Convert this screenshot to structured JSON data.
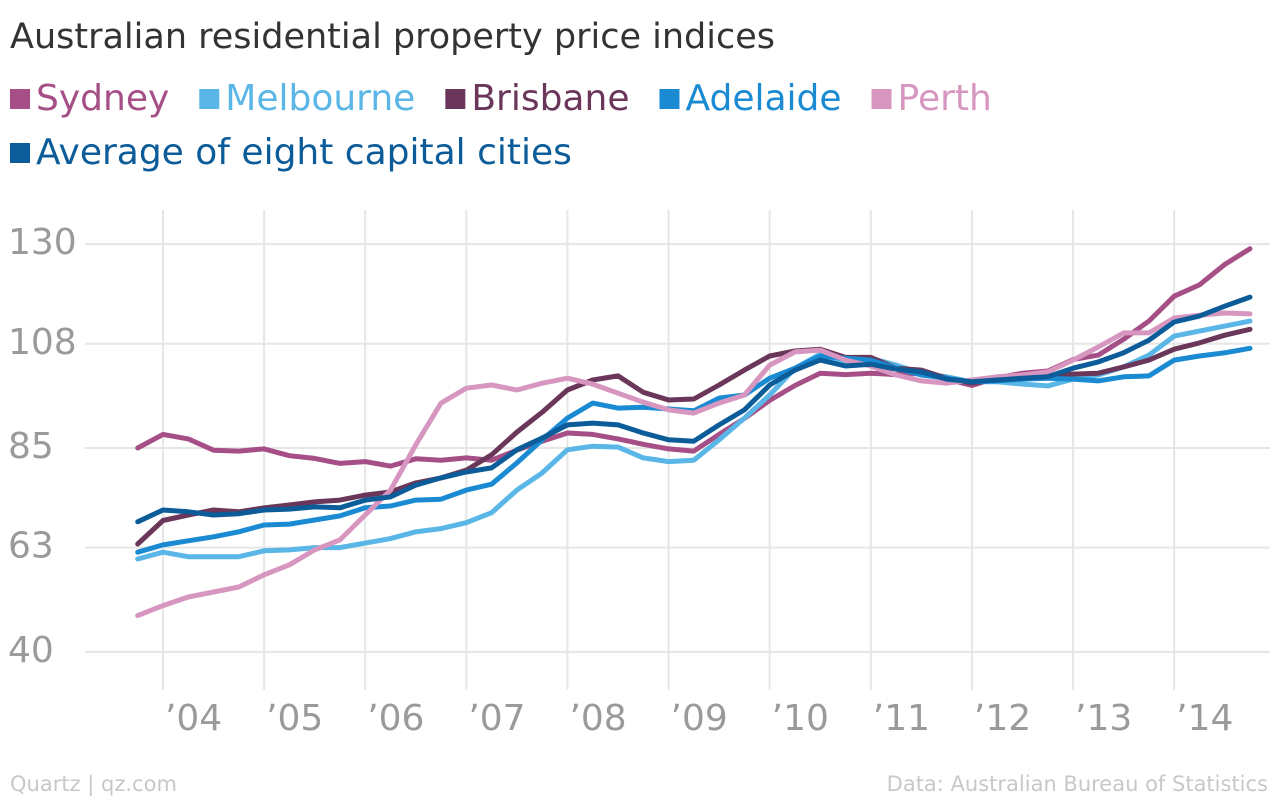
{
  "chart_data": {
    "type": "line",
    "title": "Australian residential property price indices",
    "source_left": "Quartz | qz.com",
    "source_right": "Data: Australian Bureau of Statistics",
    "x": [
      2003.75,
      2004,
      2004.25,
      2004.5,
      2004.75,
      2005,
      2005.25,
      2005.5,
      2005.75,
      2006,
      2006.25,
      2006.5,
      2006.75,
      2007,
      2007.25,
      2007.5,
      2007.75,
      2008,
      2008.25,
      2008.5,
      2008.75,
      2009,
      2009.25,
      2009.5,
      2009.75,
      2010,
      2010.25,
      2010.5,
      2010.75,
      2011,
      2011.25,
      2011.5,
      2011.75,
      2012,
      2012.25,
      2012.5,
      2012.75,
      2013,
      2013.25,
      2013.5,
      2013.75,
      2014,
      2014.25,
      2014.5,
      2014.75
    ],
    "xlim": [
      2003.5,
      2014.75
    ],
    "xticks": [
      {
        "value": 2004,
        "label": "’04"
      },
      {
        "value": 2005,
        "label": "’05"
      },
      {
        "value": 2006,
        "label": "’06"
      },
      {
        "value": 2007,
        "label": "’07"
      },
      {
        "value": 2008,
        "label": "’08"
      },
      {
        "value": 2009,
        "label": "’09"
      },
      {
        "value": 2010,
        "label": "’10"
      },
      {
        "value": 2011,
        "label": "’11"
      },
      {
        "value": 2012,
        "label": "’12"
      },
      {
        "value": 2013,
        "label": "’13"
      },
      {
        "value": 2014,
        "label": "’14"
      }
    ],
    "ylim": [
      34,
      134
    ],
    "yticks": [
      40,
      63,
      85,
      108,
      130
    ],
    "grid": true,
    "series": [
      {
        "name": "Sydney",
        "color": "#a54f86",
        "values": [
          85,
          88,
          87,
          84.5,
          84.3,
          84.8,
          83.3,
          82.7,
          81.6,
          82,
          81,
          82.6,
          82.3,
          82.8,
          82.3,
          84.5,
          86.5,
          88.3,
          88,
          87,
          85.8,
          84.8,
          84.3,
          88,
          91.5,
          95.5,
          98.8,
          101.5,
          101.2,
          101.5,
          101.2,
          101.5,
          100.2,
          98.8,
          100.5,
          101.5,
          102,
          104.5,
          105.5,
          109,
          113,
          118.5,
          121,
          125.5,
          129
        ]
      },
      {
        "name": "Melbourne",
        "color": "#5ab6e6",
        "values": [
          60.5,
          62,
          61,
          61,
          61,
          62.3,
          62.5,
          63,
          63,
          64,
          65,
          66.5,
          67.2,
          68.5,
          70.7,
          75.7,
          79.5,
          84.6,
          85.4,
          85.2,
          82.8,
          82,
          82.3,
          86.8,
          91.6,
          96.7,
          102.6,
          105.7,
          103.3,
          104.8,
          103.3,
          101.5,
          100.7,
          99.6,
          99.6,
          99.1,
          98.7,
          100.2,
          101.1,
          102.9,
          105.5,
          109.7,
          110.8,
          111.9,
          113
        ]
      },
      {
        "name": "Brisbane",
        "color": "#6a3659",
        "values": [
          63.8,
          69,
          70.2,
          71.3,
          70.9,
          71.8,
          72.4,
          73.1,
          73.5,
          74.6,
          75.3,
          77.3,
          78.4,
          80.1,
          83.5,
          88.5,
          92.9,
          97.8,
          100,
          100.9,
          97.3,
          95.6,
          95.8,
          98.9,
          102.2,
          105.3,
          106.4,
          106.8,
          105,
          105,
          102.6,
          102.2,
          100.4,
          99.3,
          100.2,
          100.4,
          100.9,
          101.3,
          101.5,
          102.9,
          104.4,
          106.8,
          108.2,
          109.9,
          111.2
        ]
      },
      {
        "name": "Adelaide",
        "color": "#1a8ad2",
        "values": [
          62,
          63.6,
          64.5,
          65.4,
          66.5,
          68,
          68.2,
          69.1,
          70,
          71.8,
          72.2,
          73.5,
          73.7,
          75.7,
          77,
          81.7,
          86.8,
          91.6,
          94.9,
          93.8,
          94,
          93.6,
          93.2,
          96,
          96.7,
          100.4,
          102.6,
          105.3,
          104.8,
          104.4,
          102.6,
          101.1,
          100.4,
          99.6,
          99.8,
          100.2,
          100.4,
          100.2,
          99.8,
          100.7,
          100.9,
          104.4,
          105.3,
          106,
          107
        ]
      },
      {
        "name": "Perth",
        "color": "#d796c0",
        "values": [
          48,
          50.2,
          52.1,
          53.2,
          54.3,
          57,
          59.2,
          62.5,
          64.7,
          70.2,
          75.7,
          85.7,
          94.9,
          98.2,
          98.9,
          97.8,
          99.3,
          100.4,
          99.1,
          97.1,
          95.1,
          93.4,
          92.7,
          94.9,
          96.7,
          103.3,
          106.2,
          106.6,
          104.4,
          103.1,
          101.1,
          99.8,
          99.3,
          100,
          100.7,
          101.1,
          101.8,
          104.4,
          107.3,
          110.4,
          110.4,
          113.7,
          114.3,
          114.8,
          114.6
        ]
      },
      {
        "name": "Average of eight capital cities",
        "color": "#0b5c98",
        "values": [
          68.7,
          71.3,
          70.9,
          70.2,
          70.5,
          71.3,
          71.5,
          72,
          71.8,
          73.5,
          74.2,
          76.8,
          78.4,
          79.7,
          80.6,
          84.6,
          87.2,
          90.1,
          90.5,
          90.1,
          88.3,
          86.8,
          86.5,
          90.1,
          93.4,
          98.9,
          102.2,
          104.4,
          103.1,
          103.5,
          102.4,
          101.8,
          100.2,
          99.6,
          100,
          100.4,
          100.7,
          102.6,
          104,
          106,
          108.8,
          112.8,
          114.1,
          116.3,
          118.3
        ]
      }
    ]
  }
}
